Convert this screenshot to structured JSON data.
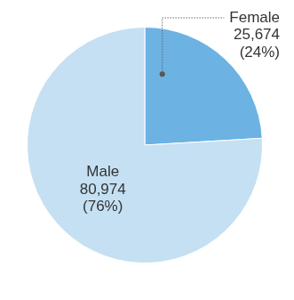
{
  "chart_data": {
    "type": "pie",
    "categories": [
      "Female",
      "Male"
    ],
    "values": [
      25674,
      80974
    ],
    "value_labels": [
      "25,674",
      "80,974"
    ],
    "percentages": [
      24,
      76
    ],
    "percentage_labels": [
      "(24%)",
      "(76%)"
    ],
    "colors": [
      "#6cb2e3",
      "#c5e0f3"
    ],
    "data_labels": true
  }
}
